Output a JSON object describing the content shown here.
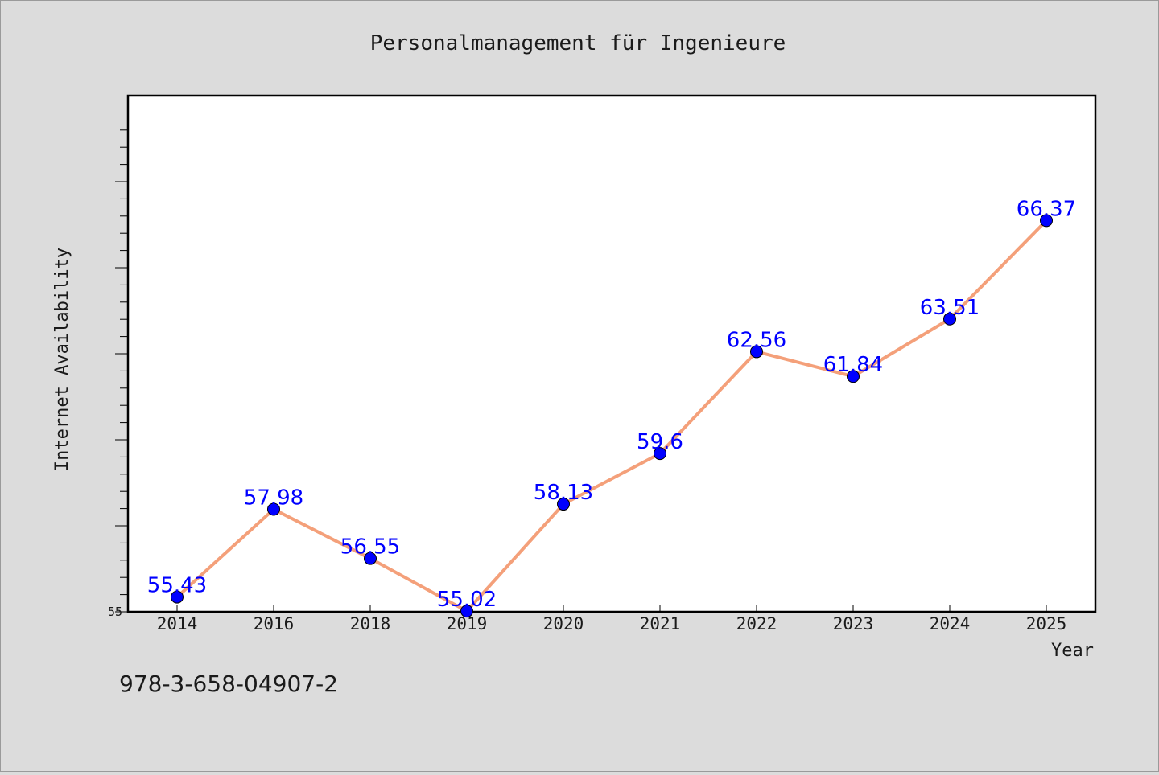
{
  "chart_data": {
    "type": "line",
    "title": "Personalmanagement für Ingenieure",
    "xlabel": "Year",
    "ylabel": "Internet Availability",
    "categories": [
      "2014",
      "2016",
      "2018",
      "2019",
      "2020",
      "2021",
      "2022",
      "2023",
      "2024",
      "2025"
    ],
    "series": [
      {
        "values": [
          55.43,
          57.98,
          56.55,
          55.02,
          58.13,
          59.6,
          62.56,
          61.84,
          63.51,
          66.37
        ],
        "labels": [
          "55.43",
          "57.98",
          "56.55",
          "55.02",
          "58.13",
          "59.6",
          "62.56",
          "61.84",
          "63.51",
          "66.37"
        ]
      }
    ],
    "ylim": [
      55,
      70
    ],
    "y_tick_labels": [
      "55"
    ],
    "grid": false,
    "line_color": "#f4a07a",
    "marker_color": "#0000ff",
    "label_color": "#0000ff"
  },
  "footer": {
    "isbn": "978-3-658-04907-2"
  }
}
